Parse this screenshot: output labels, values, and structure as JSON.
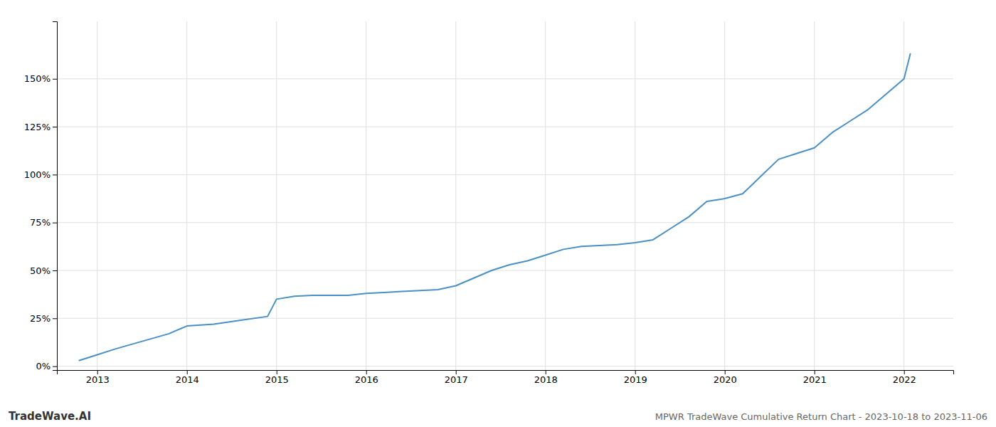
{
  "chart_data": {
    "type": "line",
    "title": "MPWR TradeWave Cumulative Return Chart - 2023-10-18 to 2023-11-06",
    "annotations": [
      "TradeWave.AI"
    ],
    "x": [
      2012.8,
      2013.0,
      2013.2,
      2013.5,
      2013.8,
      2014.0,
      2014.3,
      2014.6,
      2014.9,
      2015.0,
      2015.2,
      2015.4,
      2015.6,
      2015.8,
      2016.0,
      2016.2,
      2016.4,
      2016.6,
      2016.8,
      2017.0,
      2017.2,
      2017.4,
      2017.6,
      2017.8,
      2018.0,
      2018.2,
      2018.4,
      2018.6,
      2018.8,
      2019.0,
      2019.2,
      2019.4,
      2019.6,
      2019.8,
      2020.0,
      2020.2,
      2020.4,
      2020.6,
      2020.8,
      2021.0,
      2021.2,
      2021.4,
      2021.6,
      2021.8,
      2022.0,
      2022.07
    ],
    "values": [
      0.03,
      0.06,
      0.09,
      0.13,
      0.17,
      0.21,
      0.22,
      0.24,
      0.26,
      0.35,
      0.365,
      0.37,
      0.37,
      0.37,
      0.38,
      0.385,
      0.39,
      0.395,
      0.4,
      0.42,
      0.46,
      0.5,
      0.53,
      0.55,
      0.58,
      0.61,
      0.625,
      0.63,
      0.635,
      0.645,
      0.66,
      0.72,
      0.78,
      0.86,
      0.875,
      0.9,
      0.99,
      1.08,
      1.11,
      1.14,
      1.22,
      1.28,
      1.34,
      1.42,
      1.5,
      1.63
    ],
    "color": "#4a90c4",
    "xlim": [
      2012.55,
      2022.55
    ],
    "xticks": [
      2013,
      2014,
      2015,
      2016,
      2017,
      2018,
      2019,
      2020,
      2021,
      2022
    ],
    "ylim": [
      -0.02,
      1.8
    ],
    "yticks": [
      {
        "value": 0.0,
        "label": "0%"
      },
      {
        "value": 0.25,
        "label": "25%"
      },
      {
        "value": 0.5,
        "label": "50%"
      },
      {
        "value": 0.75,
        "label": "75%"
      },
      {
        "value": 1.0,
        "label": "100%"
      },
      {
        "value": 1.25,
        "label": "125%"
      },
      {
        "value": 1.5,
        "label": "150%"
      }
    ],
    "grid": true
  }
}
